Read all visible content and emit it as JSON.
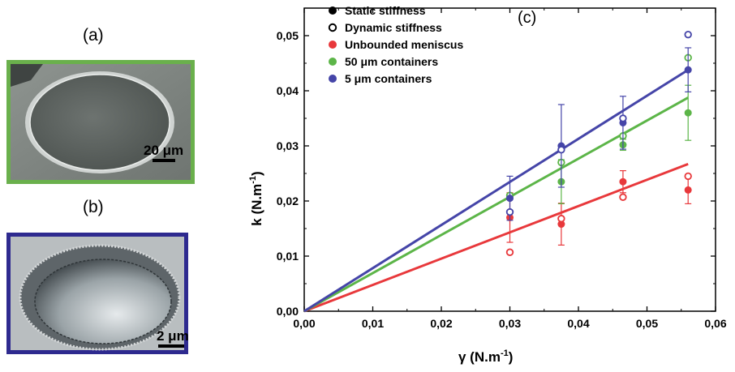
{
  "panels": {
    "a": {
      "label": "(a)",
      "scale_text": "20 μm",
      "border_color": "#6ab04c"
    },
    "b": {
      "label": "(b)",
      "scale_text": "2 μm",
      "border_color": "#2e2a8f"
    }
  },
  "chart_data": {
    "type": "scatter",
    "panel_label": "(c)",
    "xlabel": "γ (N.m-1)",
    "xlabel_main": "γ (N.m",
    "xlabel_sup": "-1",
    "xlabel_end": ")",
    "ylabel": "k (N.m-1)",
    "ylabel_main": "k (N.m",
    "ylabel_sup": "-1",
    "ylabel_end": ")",
    "xlim": [
      0.0,
      0.06
    ],
    "ylim": [
      0.0,
      0.055
    ],
    "x_ticks": [
      "0,00",
      "0,01",
      "0,02",
      "0,03",
      "0,04",
      "0,05",
      "0,06"
    ],
    "y_ticks": [
      "0,00",
      "0,01",
      "0,02",
      "0,03",
      "0,04",
      "0,05"
    ],
    "x_tick_values": [
      0.0,
      0.01,
      0.02,
      0.03,
      0.04,
      0.05,
      0.06
    ],
    "y_tick_values": [
      0.0,
      0.01,
      0.02,
      0.03,
      0.04,
      0.05
    ],
    "grid": false,
    "legend_position": "top-center",
    "legend": [
      {
        "name": "Static stiffness",
        "marker": "filled",
        "color": "#000000"
      },
      {
        "name": "Dynamic stiffness",
        "marker": "open",
        "color": "#000000"
      },
      {
        "name": "Unbounded meniscus",
        "marker": "filled",
        "color": "#e8383b"
      },
      {
        "name": "50 μm containers",
        "marker": "filled",
        "color": "#5cb548"
      },
      {
        "name": "5 μm containers",
        "marker": "filled",
        "color": "#4545a8"
      }
    ],
    "series": [
      {
        "name": "Unbounded meniscus",
        "color": "#e8383b",
        "fit_slope": 0.477,
        "static": [
          {
            "x": 0.03,
            "y": 0.017,
            "err": 0.0045
          },
          {
            "x": 0.0375,
            "y": 0.0158,
            "err": 0.0038
          },
          {
            "x": 0.0465,
            "y": 0.0235,
            "err": 0.002
          },
          {
            "x": 0.056,
            "y": 0.022,
            "err": 0.0025
          }
        ],
        "dynamic": [
          {
            "x": 0.03,
            "y": 0.0107
          },
          {
            "x": 0.0375,
            "y": 0.0168
          },
          {
            "x": 0.0465,
            "y": 0.0207
          },
          {
            "x": 0.056,
            "y": 0.0245
          }
        ]
      },
      {
        "name": "50 μm containers",
        "color": "#5cb548",
        "fit_slope": 0.692,
        "static": [
          {
            "x": 0.03,
            "y": 0.021,
            "err": 0.0
          },
          {
            "x": 0.0375,
            "y": 0.0235,
            "err": 0.004
          },
          {
            "x": 0.0465,
            "y": 0.0302,
            "err": 0.001
          },
          {
            "x": 0.056,
            "y": 0.036,
            "err": 0.005
          }
        ],
        "dynamic": [
          {
            "x": 0.03,
            "y": 0.021
          },
          {
            "x": 0.0375,
            "y": 0.027
          },
          {
            "x": 0.0465,
            "y": 0.0318
          },
          {
            "x": 0.056,
            "y": 0.046
          }
        ]
      },
      {
        "name": "5 μm containers",
        "color": "#4545a8",
        "fit_slope": 0.782,
        "static": [
          {
            "x": 0.03,
            "y": 0.0205,
            "err": 0.004
          },
          {
            "x": 0.0375,
            "y": 0.03,
            "err": 0.0075
          },
          {
            "x": 0.0465,
            "y": 0.0342,
            "err": 0.0048
          },
          {
            "x": 0.056,
            "y": 0.0438,
            "err": 0.004
          }
        ],
        "dynamic": [
          {
            "x": 0.03,
            "y": 0.018
          },
          {
            "x": 0.0375,
            "y": 0.0293
          },
          {
            "x": 0.0465,
            "y": 0.035
          },
          {
            "x": 0.056,
            "y": 0.0502
          }
        ]
      }
    ]
  }
}
